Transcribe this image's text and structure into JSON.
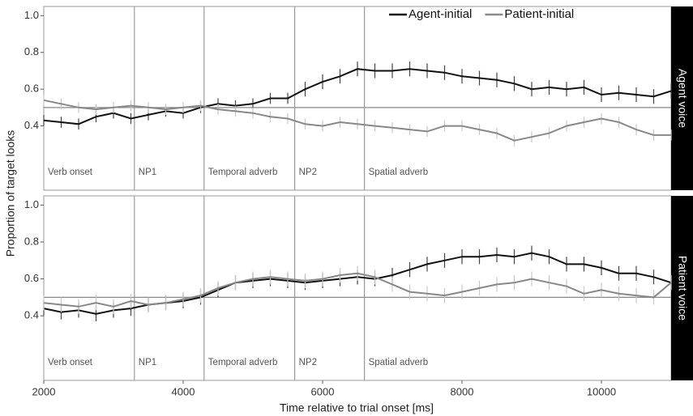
{
  "chart_data": {
    "type": "line",
    "x_label": "Time relative to trial onset [ms]",
    "y_label": "Proportion of target looks",
    "xlim": [
      2000,
      11000
    ],
    "xticks": [
      2000,
      4000,
      6000,
      8000,
      10000
    ],
    "ylim": [
      0.05,
      1.05
    ],
    "yticks": [
      0.4,
      0.6,
      0.8,
      {
        "value": 1,
        "label": "1.0"
      }
    ],
    "reference_line": 0.5,
    "legend": "top-right",
    "regions": [
      {
        "label": "Verb onset",
        "start": 2000
      },
      {
        "label": "NP1",
        "start": 3300
      },
      {
        "label": "Temporal adverb",
        "start": 4300
      },
      {
        "label": "NP2",
        "start": 5600
      },
      {
        "label": "Spatial adverb",
        "start": 6600
      }
    ],
    "x": [
      2000,
      2250,
      2500,
      2750,
      3000,
      3250,
      3500,
      3750,
      4000,
      4250,
      4500,
      4750,
      5000,
      5250,
      5500,
      5750,
      6000,
      6250,
      6500,
      6750,
      7000,
      7250,
      7500,
      7750,
      8000,
      8250,
      8500,
      8750,
      9000,
      9250,
      9500,
      9750,
      10000,
      10250,
      10500,
      10750,
      11000
    ],
    "panels": [
      {
        "label": "Agent voice",
        "series": [
          {
            "name": "Agent-initial",
            "color": "#111111",
            "values": [
              0.43,
              0.42,
              0.41,
              0.45,
              0.47,
              0.44,
              0.46,
              0.48,
              0.47,
              0.5,
              0.52,
              0.51,
              0.52,
              0.55,
              0.55,
              0.6,
              0.64,
              0.67,
              0.71,
              0.7,
              0.7,
              0.71,
              0.7,
              0.69,
              0.67,
              0.66,
              0.65,
              0.63,
              0.6,
              0.61,
              0.6,
              0.61,
              0.57,
              0.58,
              0.57,
              0.56,
              0.59
            ],
            "errors": [
              0.03,
              0.03,
              0.03,
              0.03,
              0.03,
              0.03,
              0.03,
              0.03,
              0.03,
              0.03,
              0.03,
              0.03,
              0.03,
              0.03,
              0.03,
              0.04,
              0.04,
              0.04,
              0.04,
              0.04,
              0.04,
              0.04,
              0.04,
              0.04,
              0.04,
              0.04,
              0.04,
              0.04,
              0.04,
              0.04,
              0.04,
              0.04,
              0.04,
              0.04,
              0.04,
              0.04,
              0.04
            ]
          },
          {
            "name": "Patient-initial",
            "color": "#888888",
            "values": [
              0.54,
              0.52,
              0.5,
              0.49,
              0.5,
              0.51,
              0.5,
              0.49,
              0.5,
              0.51,
              0.49,
              0.48,
              0.47,
              0.45,
              0.44,
              0.41,
              0.4,
              0.42,
              0.41,
              0.4,
              0.39,
              0.38,
              0.37,
              0.4,
              0.4,
              0.38,
              0.36,
              0.32,
              0.34,
              0.36,
              0.4,
              0.42,
              0.44,
              0.42,
              0.38,
              0.35,
              0.35
            ],
            "errors": [
              0.03,
              0.03,
              0.03,
              0.03,
              0.03,
              0.03,
              0.03,
              0.03,
              0.03,
              0.03,
              0.03,
              0.03,
              0.03,
              0.03,
              0.03,
              0.03,
              0.03,
              0.03,
              0.03,
              0.03,
              0.03,
              0.03,
              0.03,
              0.03,
              0.03,
              0.03,
              0.03,
              0.03,
              0.03,
              0.03,
              0.03,
              0.03,
              0.03,
              0.03,
              0.03,
              0.03,
              0.03
            ]
          }
        ]
      },
      {
        "label": "Patient voice",
        "series": [
          {
            "name": "Agent-initial",
            "color": "#111111",
            "values": [
              0.44,
              0.42,
              0.43,
              0.41,
              0.43,
              0.44,
              0.46,
              0.47,
              0.48,
              0.5,
              0.54,
              0.58,
              0.59,
              0.6,
              0.59,
              0.58,
              0.59,
              0.6,
              0.61,
              0.6,
              0.62,
              0.65,
              0.68,
              0.7,
              0.72,
              0.72,
              0.73,
              0.72,
              0.74,
              0.72,
              0.68,
              0.68,
              0.66,
              0.63,
              0.63,
              0.61,
              0.58
            ],
            "errors": [
              0.04,
              0.04,
              0.04,
              0.04,
              0.04,
              0.04,
              0.04,
              0.04,
              0.04,
              0.04,
              0.04,
              0.04,
              0.04,
              0.04,
              0.04,
              0.04,
              0.04,
              0.04,
              0.04,
              0.04,
              0.04,
              0.04,
              0.04,
              0.04,
              0.04,
              0.04,
              0.04,
              0.04,
              0.04,
              0.04,
              0.04,
              0.04,
              0.04,
              0.04,
              0.04,
              0.04,
              0.04
            ]
          },
          {
            "name": "Patient-initial",
            "color": "#888888",
            "values": [
              0.47,
              0.46,
              0.45,
              0.47,
              0.45,
              0.48,
              0.46,
              0.47,
              0.49,
              0.51,
              0.55,
              0.58,
              0.6,
              0.61,
              0.6,
              0.59,
              0.6,
              0.62,
              0.63,
              0.61,
              0.57,
              0.53,
              0.52,
              0.51,
              0.53,
              0.55,
              0.57,
              0.58,
              0.6,
              0.58,
              0.56,
              0.52,
              0.54,
              0.52,
              0.51,
              0.5,
              0.58
            ],
            "errors": [
              0.04,
              0.04,
              0.04,
              0.04,
              0.04,
              0.04,
              0.04,
              0.04,
              0.04,
              0.04,
              0.04,
              0.04,
              0.04,
              0.04,
              0.04,
              0.04,
              0.04,
              0.04,
              0.04,
              0.04,
              0.04,
              0.04,
              0.04,
              0.04,
              0.04,
              0.04,
              0.04,
              0.04,
              0.04,
              0.04,
              0.04,
              0.04,
              0.04,
              0.04,
              0.04,
              0.04,
              0.04
            ]
          }
        ]
      }
    ]
  }
}
